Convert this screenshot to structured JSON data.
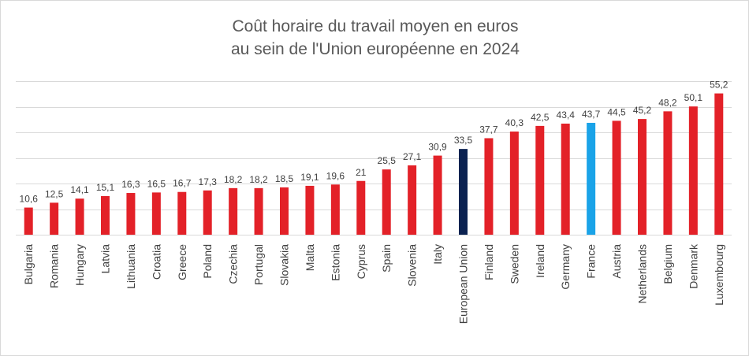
{
  "chart_data": {
    "type": "bar",
    "title_line1": "Coût horaire du travail moyen en euros",
    "title_line2": "au sein de l'Union européenne en 2024",
    "xlabel": "",
    "ylabel": "",
    "ylim": [
      0,
      60
    ],
    "grid": true,
    "categories": [
      "Bulgaria",
      "Romania",
      "Hungary",
      "Latvia",
      "Lithuania",
      "Croatia",
      "Greece",
      "Poland",
      "Czechia",
      "Portugal",
      "Slovakia",
      "Malta",
      "Estonia",
      "Cyprus",
      "Spain",
      "Slovenia",
      "Italy",
      "European Union",
      "Finland",
      "Sweden",
      "Ireland",
      "Germany",
      "France",
      "Austria",
      "Netherlands",
      "Belgium",
      "Denmark",
      "Luxembourg"
    ],
    "values": [
      10.6,
      12.5,
      14.1,
      15.1,
      16.3,
      16.5,
      16.7,
      17.3,
      18.2,
      18.2,
      18.5,
      19.1,
      19.6,
      21,
      25.5,
      27.1,
      30.9,
      33.5,
      37.7,
      40.3,
      42.5,
      43.4,
      43.7,
      44.5,
      45.2,
      48.2,
      50.1,
      55.2
    ],
    "value_labels": [
      "10,6",
      "12,5",
      "14,1",
      "15,1",
      "16,3",
      "16,5",
      "16,7",
      "17,3",
      "18,2",
      "18,2",
      "18,5",
      "19,1",
      "19,6",
      "21",
      "25,5",
      "27,1",
      "30,9",
      "33,5",
      "37,7",
      "40,3",
      "42,5",
      "43,4",
      "43,7",
      "44,5",
      "45,2",
      "48,2",
      "50,1",
      "55,2"
    ],
    "colors": {
      "default": "#e32128",
      "European Union": "#0b2251",
      "France": "#1aa3e8"
    }
  }
}
